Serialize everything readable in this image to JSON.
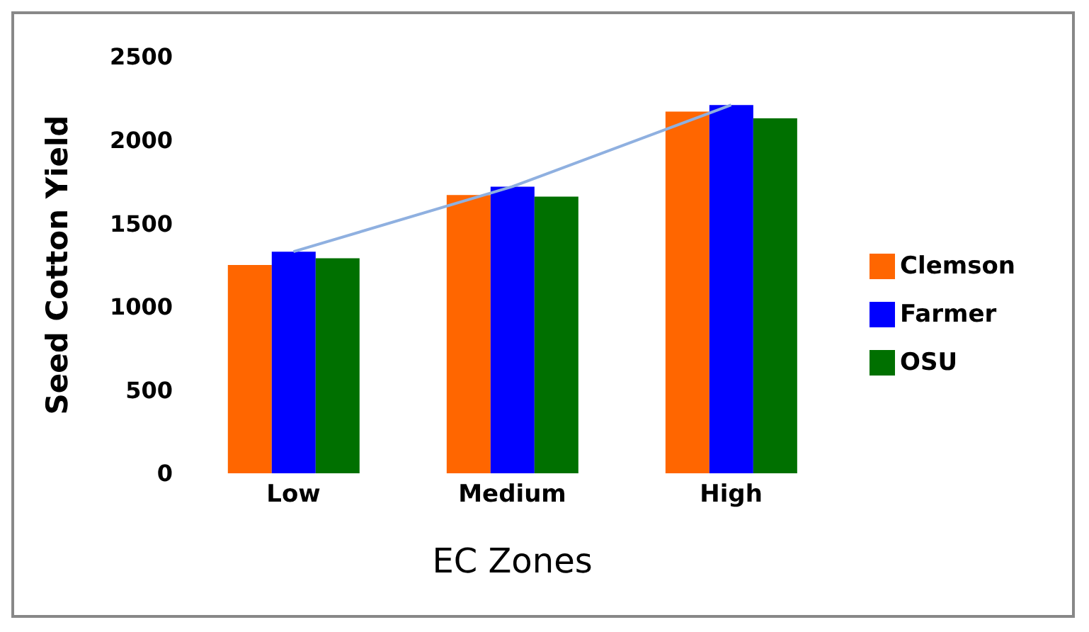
{
  "chart_data": {
    "type": "bar",
    "xlabel": "EC Zones",
    "ylabel": "Seed Cotton Yield",
    "categories": [
      "Low",
      "Medium",
      "High"
    ],
    "series": [
      {
        "name": "Clemson",
        "color": "#ff6600",
        "values": [
          1250,
          1670,
          2170
        ]
      },
      {
        "name": "Farmer",
        "color": "#0000ff",
        "values": [
          1330,
          1720,
          2210
        ]
      },
      {
        "name": "OSU",
        "color": "#007000",
        "values": [
          1290,
          1660,
          2130
        ]
      },
      {
        "type": "line",
        "color": "#8fb0e0",
        "values": [
          1330,
          1720,
          2210
        ]
      }
    ],
    "ylim": [
      0,
      2500
    ],
    "yticks": [
      0,
      500,
      1000,
      1500,
      2000,
      2500
    ],
    "grid": false,
    "legend": "right"
  }
}
